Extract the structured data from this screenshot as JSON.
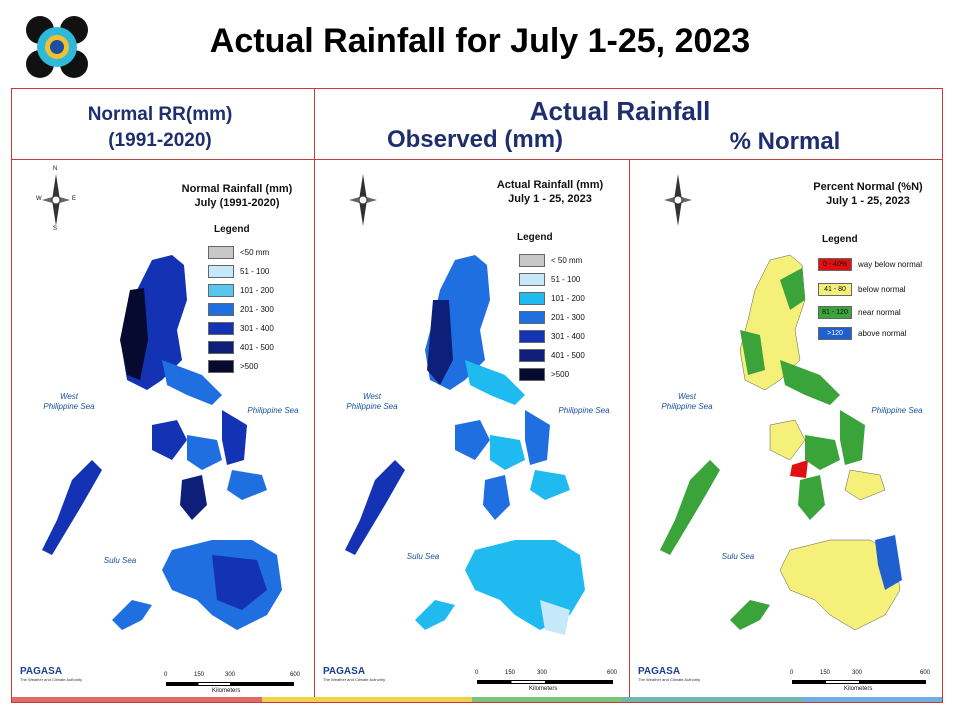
{
  "title": "Actual Rainfall for July 1-25, 2023",
  "headers": {
    "normal_line1": "Normal RR(mm)",
    "normal_line2": "(1991-2020)",
    "actual": "Actual Rainfall",
    "observed": "Observed (mm)",
    "percent": "% Normal"
  },
  "panels": [
    {
      "title_line1": "Normal Rainfall (mm)",
      "title_line2": "July (1991-2020)",
      "legend_title": "Legend",
      "legend": [
        {
          "label": "<50 mm",
          "color": "#c8c8c8"
        },
        {
          "label": "51 - 100",
          "color": "#c6e9fa"
        },
        {
          "label": "101 - 200",
          "color": "#58c6f0"
        },
        {
          "label": "201 - 300",
          "color": "#1f6fe0"
        },
        {
          "label": "301 - 400",
          "color": "#1432b4"
        },
        {
          "label": "401 - 500",
          "color": "#0d1f78"
        },
        {
          "label": ">500",
          "color": "#060a2e"
        }
      ]
    },
    {
      "title_line1": "Actual Rainfall (mm)",
      "title_line2": "July 1 - 25, 2023",
      "legend_title": "Legend",
      "legend": [
        {
          "label": "< 50 mm",
          "color": "#c8c8c8"
        },
        {
          "label": "51 - 100",
          "color": "#c6e9fa"
        },
        {
          "label": "101 - 200",
          "color": "#1fbaf0"
        },
        {
          "label": "201 - 300",
          "color": "#1f6fe0"
        },
        {
          "label": "301 - 400",
          "color": "#1432b4"
        },
        {
          "label": "401 - 500",
          "color": "#0d1f78"
        },
        {
          "label": ">500",
          "color": "#060a2e"
        }
      ]
    },
    {
      "title_line1": "Percent Normal (%N)",
      "title_line2": "July 1 - 25, 2023",
      "legend_title": "Legend",
      "legend": [
        {
          "label": "0 - 40%",
          "desc": "way below normal",
          "color": "#e01010"
        },
        {
          "label": "41 - 80",
          "desc": "below normal",
          "color": "#f5f07a"
        },
        {
          "label": "81 - 120",
          "desc": "near normal",
          "color": "#3aa33a"
        },
        {
          "label": ">120",
          "desc": "above normal",
          "color": "#1f5fd0"
        }
      ]
    }
  ],
  "seas": {
    "west": "West\nPhilippine Sea",
    "philippine": "Philippine Sea",
    "sulu": "Sulu Sea"
  },
  "scale_ticks": [
    "0",
    "150",
    "300",
    "600"
  ],
  "scale_unit": "Kilometers",
  "brand": {
    "name": "PAGASA",
    "dost": "DOST",
    "sub": "The Weather and Climate Authority"
  },
  "compass": {
    "n": "N",
    "s": "S",
    "e": "E",
    "w": "W"
  }
}
